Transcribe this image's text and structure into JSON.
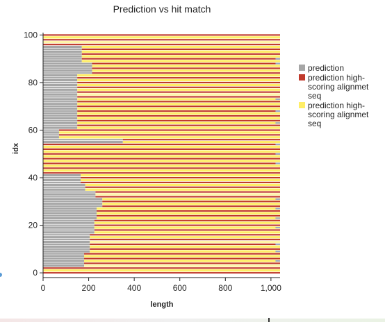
{
  "chart_data": {
    "type": "bar",
    "orientation": "horizontal-stacked",
    "title": "Prediction vs hit match",
    "xlabel": "length",
    "ylabel": "idx",
    "xlim": [
      0,
      1040
    ],
    "ylim": [
      -2,
      101
    ],
    "x_ticks": [
      {
        "value": 0,
        "label": "0"
      },
      {
        "value": 200,
        "label": "200"
      },
      {
        "value": 400,
        "label": "400"
      },
      {
        "value": 600,
        "label": "600"
      },
      {
        "value": 800,
        "label": "800"
      },
      {
        "value": 1000,
        "label": "1,000"
      }
    ],
    "y_ticks": [
      {
        "value": 0,
        "label": "0"
      },
      {
        "value": 20,
        "label": "20"
      },
      {
        "value": 40,
        "label": "40"
      },
      {
        "value": 60,
        "label": "60"
      },
      {
        "value": 80,
        "label": "80"
      },
      {
        "value": 100,
        "label": "100"
      }
    ],
    "grid": false,
    "legend_position": "right",
    "series": [
      {
        "name": "prediction",
        "color": "#a6a6a6"
      },
      {
        "name": "prediction high-scoring alignmet seq",
        "color": "#c0392b"
      },
      {
        "name": "prediction high-scoring alignmet seq",
        "color": "#ffee66"
      }
    ],
    "legend_lines": [
      [
        "prediction"
      ],
      [
        "prediction high-",
        "scoring alignmet",
        "seq"
      ],
      [
        "prediction high-",
        "scoring alignmet",
        "seq"
      ]
    ],
    "rows": {
      "count": 101,
      "length": 1040,
      "gray_prefix": [
        {
          "from": 0,
          "to": 2,
          "x": 0
        },
        {
          "from": 3,
          "to": 8,
          "x": 180
        },
        {
          "from": 9,
          "to": 16,
          "x": 205
        },
        {
          "from": 17,
          "to": 22,
          "x": 225
        },
        {
          "from": 23,
          "to": 27,
          "x": 235
        },
        {
          "from": 28,
          "to": 31,
          "x": 260
        },
        {
          "from": 32,
          "to": 34,
          "x": 230
        },
        {
          "from": 35,
          "to": 37,
          "x": 185
        },
        {
          "from": 38,
          "to": 41,
          "x": 165
        },
        {
          "from": 42,
          "to": 54,
          "x": 0
        },
        {
          "from": 55,
          "to": 56,
          "x": 350
        },
        {
          "from": 57,
          "to": 60,
          "x": 70
        },
        {
          "from": 61,
          "to": 65,
          "x": 150
        },
        {
          "from": 66,
          "to": 83,
          "x": 150
        },
        {
          "from": 84,
          "to": 88,
          "x": 215
        },
        {
          "from": 89,
          "to": 95,
          "x": 170
        },
        {
          "from": 96,
          "to": 100,
          "x": 0
        }
      ],
      "light_yellow_rows": [
        3,
        13,
        24,
        33,
        36,
        58,
        75,
        84,
        92,
        97
      ],
      "tail_dash_rows": [
        5,
        9,
        12,
        19,
        23,
        27,
        31,
        46,
        50,
        54,
        63,
        68,
        73,
        88,
        90
      ]
    }
  }
}
